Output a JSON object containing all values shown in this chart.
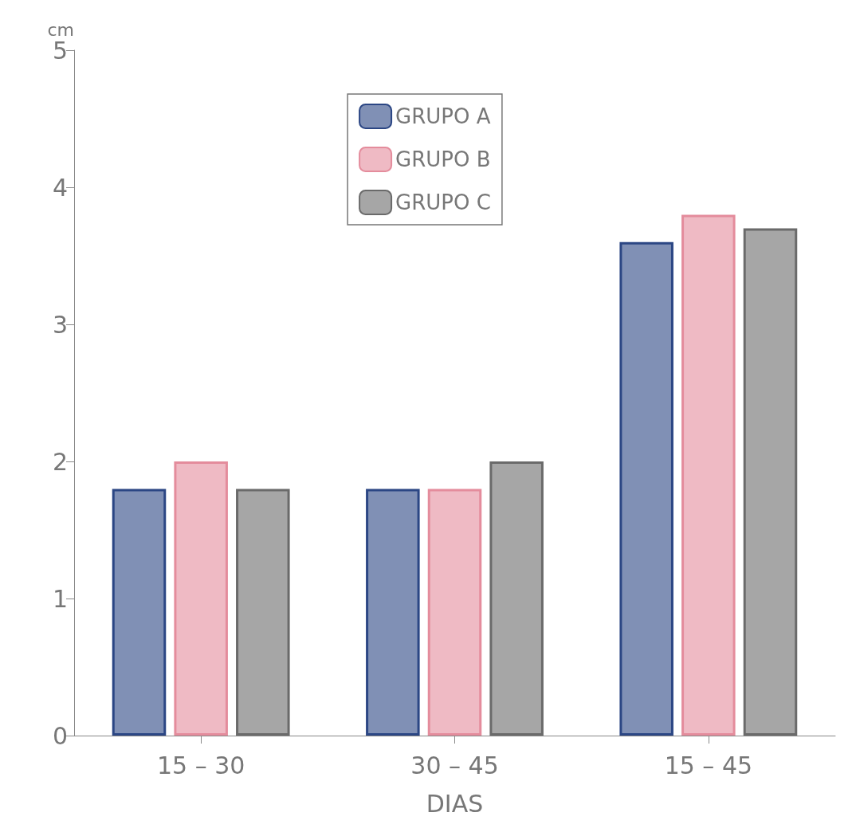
{
  "chart_data": {
    "type": "bar",
    "xlabel": "DIAS",
    "ylabel": "cm",
    "categories": [
      "15 – 30",
      "30 – 45",
      "15 – 45"
    ],
    "series": [
      {
        "name": "GRUPO A",
        "color": "#2b4684",
        "values": [
          1.8,
          1.8,
          3.6
        ]
      },
      {
        "name": "GRUPO B",
        "color": "#e48c9c",
        "values": [
          2.0,
          1.8,
          3.8
        ]
      },
      {
        "name": "GRUPO C",
        "color": "#6a6a6a",
        "values": [
          1.8,
          2.0,
          3.7
        ]
      }
    ],
    "ylim": [
      0,
      5
    ],
    "yticks": [
      0,
      1,
      2,
      3,
      4,
      5
    ],
    "grid": false,
    "legend": "top"
  }
}
